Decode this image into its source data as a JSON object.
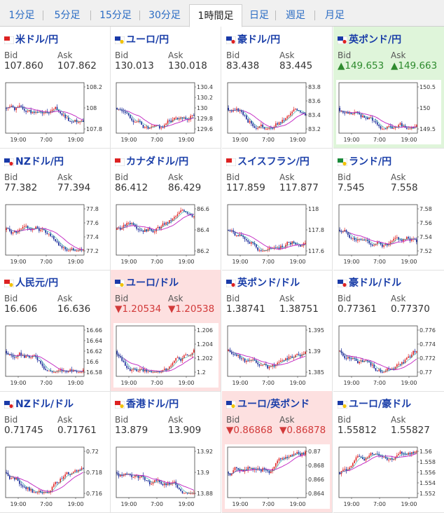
{
  "tabs": [
    {
      "label": "1分足",
      "active": false
    },
    {
      "label": "5分足",
      "active": false
    },
    {
      "label": "15分足",
      "active": false
    },
    {
      "label": "30分足",
      "active": false
    },
    {
      "label": "1時間足",
      "active": true
    },
    {
      "label": "日足",
      "active": false
    },
    {
      "label": "週足",
      "active": false
    },
    {
      "label": "月足",
      "active": false
    }
  ],
  "colors": {
    "bull": "#e02a2a",
    "bear": "#1a2a9a",
    "ma": "#c020c0",
    "ma_fast": "#1aa0a0",
    "highlight_up": "#dff5da",
    "highlight_down": "#fde0e0"
  },
  "labels": {
    "bid": "Bid",
    "ask": "Ask"
  },
  "chart_x_ticks": [
    "19:00",
    "7:00",
    "19:00"
  ],
  "pairs": [
    {
      "title": "米ドル/円",
      "bid": "107.860",
      "ask": "107.862",
      "trend": "none",
      "yticks": [
        "108.2",
        "108",
        "107.8"
      ],
      "seed": 1,
      "shape": "down"
    },
    {
      "title": "ユーロ/円",
      "bid": "130.013",
      "ask": "130.018",
      "trend": "none",
      "yticks": [
        "130.4",
        "130.2",
        "130",
        "129.8",
        "129.6"
      ],
      "seed": 2,
      "shape": "vdown"
    },
    {
      "title": "豪ドル/円",
      "bid": "83.438",
      "ask": "83.445",
      "trend": "none",
      "yticks": [
        "83.8",
        "83.6",
        "83.4",
        "83.2"
      ],
      "seed": 3,
      "shape": "vdown"
    },
    {
      "title": "英ポンド/円",
      "bid": "▲149.653",
      "ask": "▲149.663",
      "trend": "up",
      "yticks": [
        "150.5",
        "150",
        "149.5"
      ],
      "seed": 4,
      "shape": "down"
    },
    {
      "title": "NZドル/円",
      "bid": "77.382",
      "ask": "77.394",
      "trend": "none",
      "yticks": [
        "77.8",
        "77.6",
        "77.4",
        "77.2"
      ],
      "seed": 5,
      "shape": "down"
    },
    {
      "title": "カナダドル/円",
      "bid": "86.412",
      "ask": "86.429",
      "trend": "none",
      "yticks": [
        "86.6",
        "86.4",
        "86.2"
      ],
      "seed": 6,
      "shape": "up"
    },
    {
      "title": "スイスフラン/円",
      "bid": "117.859",
      "ask": "117.877",
      "trend": "none",
      "yticks": [
        "118",
        "117.8",
        "117.6"
      ],
      "seed": 7,
      "shape": "vdown"
    },
    {
      "title": "ランド/円",
      "bid": "7.545",
      "ask": "7.558",
      "trend": "none",
      "yticks": [
        "7.58",
        "7.56",
        "7.54",
        "7.52"
      ],
      "seed": 8,
      "shape": "down"
    },
    {
      "title": "人民元/円",
      "bid": "16.606",
      "ask": "16.636",
      "trend": "none",
      "yticks": [
        "16.66",
        "16.64",
        "16.62",
        "16.6",
        "16.58"
      ],
      "seed": 9,
      "shape": "down"
    },
    {
      "title": "ユーロ/ドル",
      "bid": "▼1.20534",
      "ask": "▼1.20538",
      "trend": "down",
      "yticks": [
        "1.206",
        "1.204",
        "1.202",
        "1.2"
      ],
      "seed": 10,
      "shape": "vdown"
    },
    {
      "title": "英ポンド/ドル",
      "bid": "1.38741",
      "ask": "1.38751",
      "trend": "none",
      "yticks": [
        "1.395",
        "1.39",
        "1.385"
      ],
      "seed": 11,
      "shape": "vdown"
    },
    {
      "title": "豪ドル/ドル",
      "bid": "0.77361",
      "ask": "0.77370",
      "trend": "none",
      "yticks": [
        "0.776",
        "0.774",
        "0.772",
        "0.77"
      ],
      "seed": 12,
      "shape": "vdown"
    },
    {
      "title": "NZドル/ドル",
      "bid": "0.71745",
      "ask": "0.71761",
      "trend": "none",
      "yticks": [
        "0.72",
        "0.718",
        "0.716"
      ],
      "seed": 13,
      "shape": "vdown"
    },
    {
      "title": "香港ドル/円",
      "bid": "13.879",
      "ask": "13.909",
      "trend": "none",
      "yticks": [
        "13.92",
        "13.9",
        "13.88"
      ],
      "seed": 14,
      "shape": "down"
    },
    {
      "title": "ユーロ/英ポンド",
      "bid": "▼0.86868",
      "ask": "▼0.86878",
      "trend": "down",
      "yticks": [
        "0.87",
        "0.868",
        "0.866",
        "0.864"
      ],
      "seed": 15,
      "shape": "up"
    },
    {
      "title": "ユーロ/豪ドル",
      "bid": "1.55812",
      "ask": "1.55827",
      "trend": "none",
      "yticks": [
        "1.56",
        "1.558",
        "1.556",
        "1.554",
        "1.552"
      ],
      "seed": 16,
      "shape": "up"
    }
  ]
}
